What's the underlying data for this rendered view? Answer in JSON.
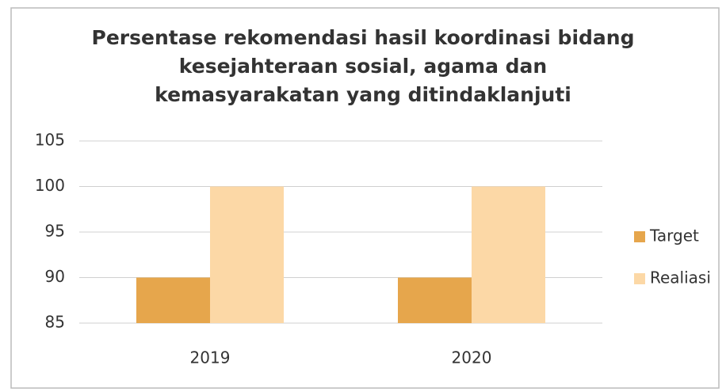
{
  "chart_data": {
    "type": "bar",
    "title": "Persentase rekomendasi hasil koordinasi bidang kesejahteraan sosial, agama dan kemasyarakatan yang ditindaklanjuti",
    "categories": [
      "2019",
      "2020"
    ],
    "series": [
      {
        "name": "Target",
        "color": "#e6a64c",
        "values": [
          90,
          90
        ]
      },
      {
        "name": "Realiasi",
        "color": "#fcd8a6",
        "values": [
          100,
          100
        ]
      }
    ],
    "ylim": [
      85,
      105
    ],
    "yticks": [
      85,
      90,
      95,
      100,
      105
    ],
    "grid": true,
    "legend": "right"
  }
}
